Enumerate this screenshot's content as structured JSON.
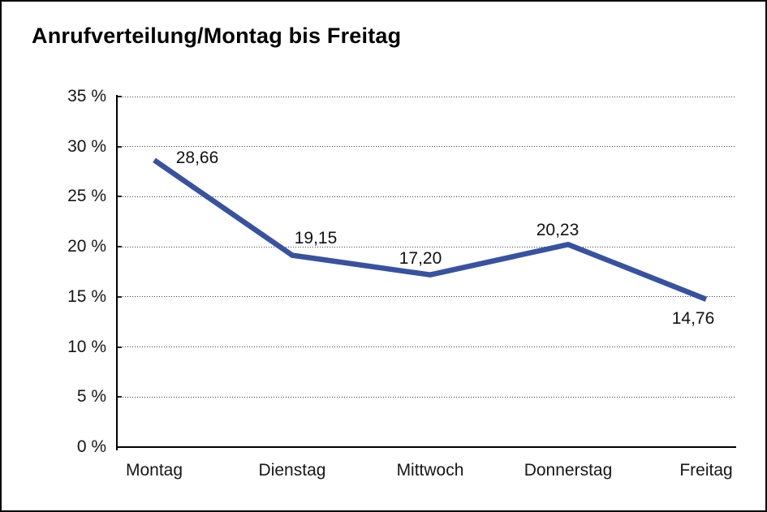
{
  "chart_data": {
    "type": "line",
    "title": "Anrufverteilung/Montag bis Freitag",
    "categories": [
      "Montag",
      "Dienstag",
      "Mittwoch",
      "Donnerstag",
      "Freitag"
    ],
    "values": [
      28.66,
      19.15,
      17.2,
      20.23,
      14.76
    ],
    "point_labels": [
      "28,66",
      "19,15",
      "17,20",
      "20,23",
      "14,76"
    ],
    "y_tick_labels": [
      "35 %",
      "30 %",
      "25 %",
      "20 %",
      "15 %",
      "10 %",
      "5 %",
      "0 %"
    ],
    "ylim": [
      0,
      35
    ],
    "y_step": 5,
    "xlabel": "",
    "ylabel": "",
    "legend": "none",
    "grid": "horizontal-dotted",
    "line_color": "#3752A0",
    "axis_color": "#000000",
    "text_color": "#161616",
    "background_color": "#ffffff"
  }
}
